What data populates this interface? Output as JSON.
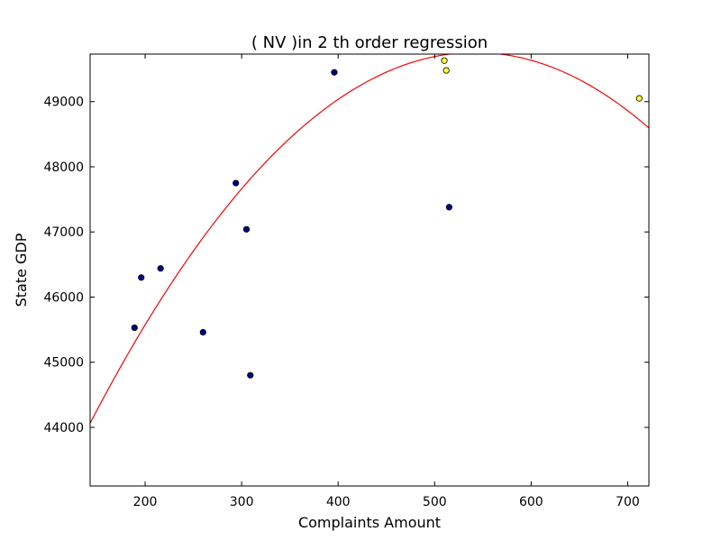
{
  "chart_data": {
    "type": "scatter",
    "title": "(  NV  )in 2 th order regression",
    "xlabel": "Complaints Amount",
    "ylabel": "State GDP",
    "xlim": [
      143,
      722
    ],
    "ylim": [
      43100,
      49730
    ],
    "xticks": [
      200,
      300,
      400,
      500,
      600,
      700
    ],
    "yticks": [
      44000,
      45000,
      46000,
      47000,
      48000,
      49000
    ],
    "grid": false,
    "series": [
      {
        "color": "#00008b",
        "points": [
          {
            "x": 189,
            "y": 45530
          },
          {
            "x": 196,
            "y": 46300
          },
          {
            "x": 216,
            "y": 46440
          },
          {
            "x": 260,
            "y": 45460
          },
          {
            "x": 294,
            "y": 47750
          },
          {
            "x": 305,
            "y": 47040
          },
          {
            "x": 309,
            "y": 44800
          },
          {
            "x": 396,
            "y": 49450
          },
          {
            "x": 515,
            "y": 47380
          }
        ]
      },
      {
        "color": "#ffff33",
        "points": [
          {
            "x": 510,
            "y": 49630
          },
          {
            "x": 512,
            "y": 49480
          },
          {
            "x": 712,
            "y": 49050
          }
        ]
      }
    ],
    "regression": {
      "color": "#ff0000",
      "order": 2,
      "coefficients": [
        39250,
        38.77,
        -0.03577
      ]
    }
  }
}
